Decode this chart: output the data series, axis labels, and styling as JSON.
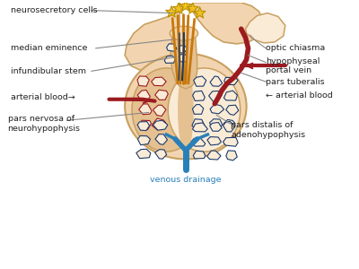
{
  "bg_color": "#ffffff",
  "skin_color": "#f2d5b0",
  "skin_dark": "#e5c090",
  "skin_darker": "#c8a060",
  "skin_lightest": "#faebd7",
  "red_color": "#9b1b20",
  "blue_color": "#1a3a6b",
  "blue_light": "#2980b9",
  "orange_color": "#c8780a",
  "gold_color": "#f0c020",
  "gold_dark": "#b89000",
  "line_color": "#888888",
  "text_color": "#222222",
  "labels": {
    "neurosecretory_cells": "neurosecretory cells",
    "median_eminence": "median eminence",
    "infundibular_stem": "infundibular stem",
    "arterial_blood_left": "arterial blood",
    "pars_nervosa": "pars nervosa of\nneurohypophysis",
    "optic_chiasma": "optic chiasma",
    "hypophyseal_portal": "hypophyseal\nportal vein",
    "pars_tuberalis": "pars tuberalis",
    "arterial_blood_right": "arterial blood",
    "pars_distalis": "pars distalis of\nadenohypophysis",
    "venous_drainage": "venous drainage"
  },
  "figsize": [
    4.0,
    3.0
  ],
  "dpi": 100
}
